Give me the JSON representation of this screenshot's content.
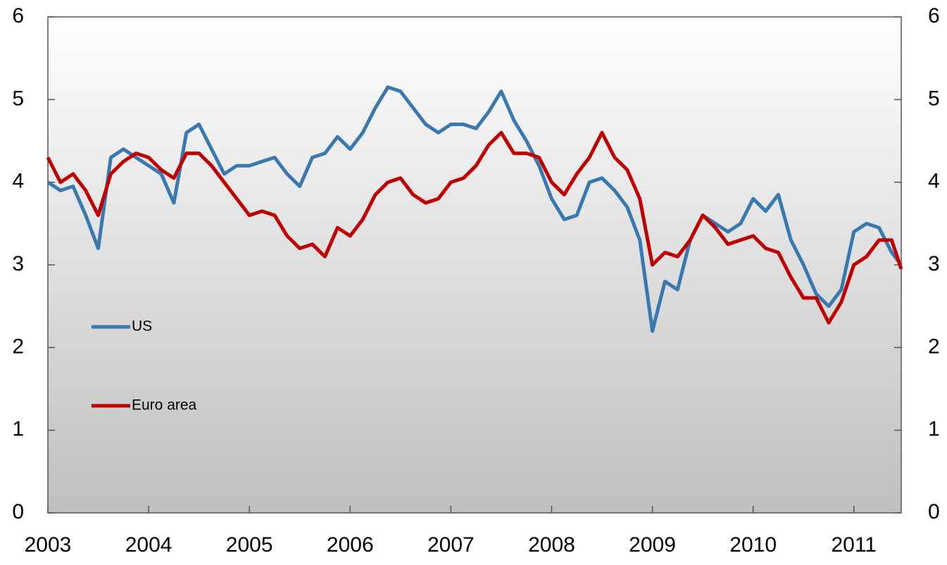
{
  "chart_data": {
    "type": "line",
    "x": [
      2003.0,
      2003.125,
      2003.25,
      2003.375,
      2003.5,
      2003.625,
      2003.75,
      2003.875,
      2004.0,
      2004.125,
      2004.25,
      2004.375,
      2004.5,
      2004.625,
      2004.75,
      2004.875,
      2005.0,
      2005.125,
      2005.25,
      2005.375,
      2005.5,
      2005.625,
      2005.75,
      2005.875,
      2006.0,
      2006.125,
      2006.25,
      2006.375,
      2006.5,
      2006.625,
      2006.75,
      2006.875,
      2007.0,
      2007.125,
      2007.25,
      2007.375,
      2007.5,
      2007.625,
      2007.75,
      2007.875,
      2008.0,
      2008.125,
      2008.25,
      2008.375,
      2008.5,
      2008.625,
      2008.75,
      2008.875,
      2009.0,
      2009.125,
      2009.25,
      2009.375,
      2009.5,
      2009.625,
      2009.75,
      2009.875,
      2010.0,
      2010.125,
      2010.25,
      2010.375,
      2010.5,
      2010.625,
      2010.75,
      2010.875,
      2011.0,
      2011.125,
      2011.25,
      2011.375,
      2011.47
    ],
    "series": [
      {
        "name": "US",
        "color": "#3a78b0",
        "values": [
          4.0,
          3.9,
          3.95,
          3.6,
          3.2,
          4.3,
          4.4,
          4.3,
          4.2,
          4.1,
          3.75,
          4.6,
          4.7,
          4.4,
          4.1,
          4.2,
          4.2,
          4.25,
          4.3,
          4.1,
          3.95,
          4.3,
          4.35,
          4.55,
          4.4,
          4.6,
          4.9,
          5.15,
          5.1,
          4.9,
          4.7,
          4.6,
          4.7,
          4.7,
          4.65,
          4.85,
          5.1,
          4.75,
          4.5,
          4.2,
          3.8,
          3.55,
          3.6,
          4.0,
          4.05,
          3.9,
          3.7,
          3.3,
          2.2,
          2.8,
          2.7,
          3.3,
          3.6,
          3.5,
          3.4,
          3.5,
          3.8,
          3.65,
          3.85,
          3.3,
          3.0,
          2.65,
          2.5,
          2.7,
          3.4,
          3.5,
          3.45,
          3.15,
          3.0
        ]
      },
      {
        "name": "Euro area",
        "color": "#c00000",
        "values": [
          4.3,
          4.0,
          4.1,
          3.9,
          3.6,
          4.1,
          4.25,
          4.35,
          4.3,
          4.15,
          4.05,
          4.35,
          4.35,
          4.2,
          4.0,
          3.8,
          3.6,
          3.65,
          3.6,
          3.35,
          3.2,
          3.25,
          3.1,
          3.45,
          3.35,
          3.55,
          3.85,
          4.0,
          4.05,
          3.85,
          3.75,
          3.8,
          4.0,
          4.05,
          4.2,
          4.45,
          4.6,
          4.35,
          4.35,
          4.3,
          4.0,
          3.85,
          4.1,
          4.3,
          4.6,
          4.3,
          4.15,
          3.8,
          3.0,
          3.15,
          3.1,
          3.3,
          3.6,
          3.45,
          3.25,
          3.3,
          3.35,
          3.2,
          3.15,
          2.85,
          2.6,
          2.6,
          2.3,
          2.55,
          3.0,
          3.1,
          3.3,
          3.3,
          2.95
        ]
      }
    ],
    "xlim": [
      2003,
      2011.47
    ],
    "xticks": [
      2003,
      2004,
      2005,
      2006,
      2007,
      2008,
      2009,
      2010,
      2011
    ],
    "ylim": [
      0,
      6
    ],
    "yticks": [
      0,
      1,
      2,
      3,
      4,
      5,
      6
    ],
    "y2lim": [
      0,
      6
    ],
    "y2ticks": [
      0,
      1,
      2,
      3,
      4,
      5,
      6
    ],
    "legend_position": "left"
  }
}
